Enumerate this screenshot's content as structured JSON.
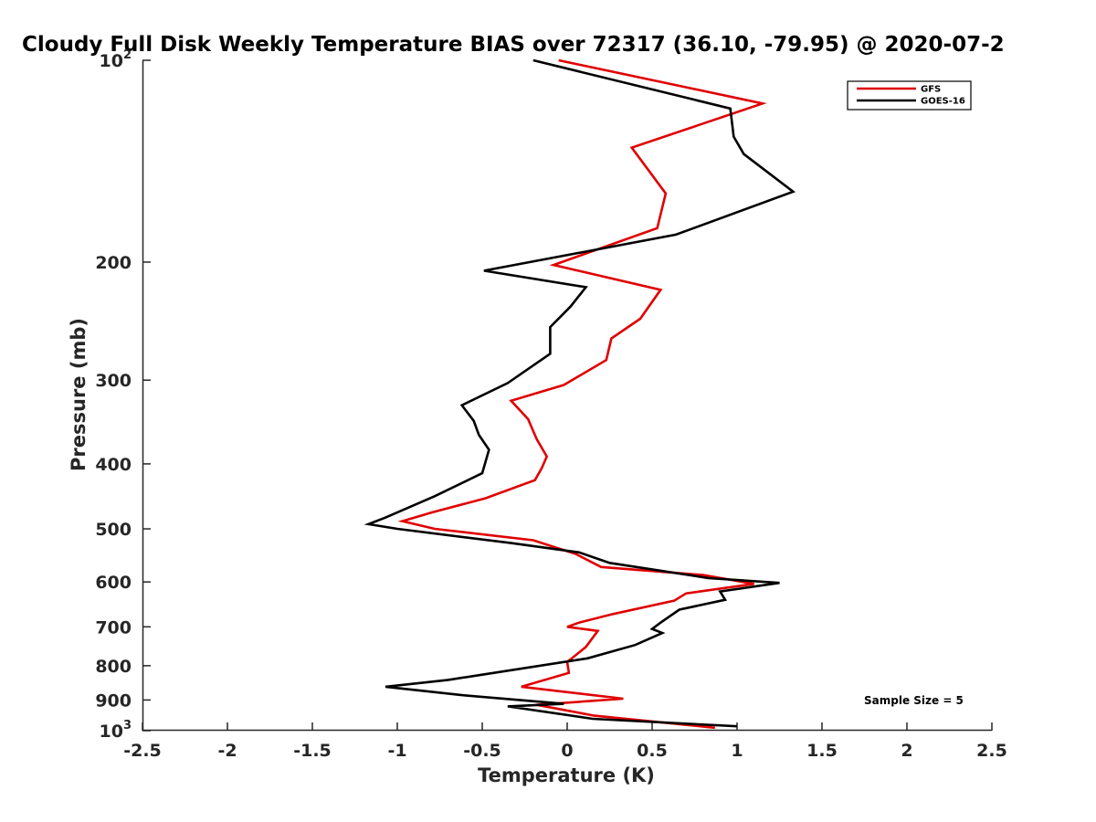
{
  "chart_data": {
    "type": "line",
    "title": "Cloudy Full Disk Weekly Temperature BIAS over 72317 (36.10, -79.95) @ 2020-07-2",
    "xlabel": "Temperature (K)",
    "ylabel": "Pressure (mb)",
    "xlim": [
      -2.5,
      2.5
    ],
    "ylim": [
      100,
      1000
    ],
    "y_scale": "log",
    "y_reversed": true,
    "grid": false,
    "legend_position": "top-right",
    "x_ticks": [
      -2.5,
      -2,
      -1.5,
      -1,
      -0.5,
      0,
      0.5,
      1,
      1.5,
      2,
      2.5
    ],
    "x_tick_labels": [
      "-2.5",
      "-2",
      "-1.5",
      "-1",
      "-0.5",
      "0",
      "0.5",
      "1",
      "1.5",
      "2",
      "2.5"
    ],
    "y_ticks": [
      100,
      200,
      300,
      400,
      500,
      600,
      700,
      800,
      900,
      1000
    ],
    "y_tick_labels": [
      {
        "base": "10",
        "exp": "2"
      },
      {
        "base": "200",
        "exp": ""
      },
      {
        "base": "300",
        "exp": ""
      },
      {
        "base": "400",
        "exp": ""
      },
      {
        "base": "500",
        "exp": ""
      },
      {
        "base": "600",
        "exp": ""
      },
      {
        "base": "700",
        "exp": ""
      },
      {
        "base": "800",
        "exp": ""
      },
      {
        "base": "900",
        "exp": ""
      },
      {
        "base": "10",
        "exp": "3"
      }
    ],
    "annotation": "Sample Size = 5",
    "series": [
      {
        "name": "GFS",
        "color": "#e00000",
        "points": [
          [
            -0.05,
            100
          ],
          [
            1.15,
            116
          ],
          [
            0.38,
            135
          ],
          [
            0.58,
            158
          ],
          [
            0.53,
            178
          ],
          [
            -0.08,
            202
          ],
          [
            0.55,
            220
          ],
          [
            0.43,
            243
          ],
          [
            0.26,
            260
          ],
          [
            0.23,
            280
          ],
          [
            -0.02,
            305
          ],
          [
            -0.33,
            322
          ],
          [
            -0.23,
            343
          ],
          [
            -0.18,
            367
          ],
          [
            -0.12,
            390
          ],
          [
            -0.15,
            406
          ],
          [
            -0.19,
            423
          ],
          [
            -0.48,
            450
          ],
          [
            -0.8,
            473
          ],
          [
            -0.97,
            487
          ],
          [
            -0.78,
            500
          ],
          [
            -0.2,
            520
          ],
          [
            0.05,
            545
          ],
          [
            0.2,
            570
          ],
          [
            0.8,
            586
          ],
          [
            1.1,
            604
          ],
          [
            0.7,
            624
          ],
          [
            0.63,
            640
          ],
          [
            0.27,
            670
          ],
          [
            0.07,
            690
          ],
          [
            0.0,
            700
          ],
          [
            0.18,
            710
          ],
          [
            0.11,
            750
          ],
          [
            0.0,
            790
          ],
          [
            0.01,
            820
          ],
          [
            -0.27,
            860
          ],
          [
            0.33,
            896
          ],
          [
            -0.18,
            915
          ],
          [
            0.16,
            950
          ],
          [
            0.87,
            990
          ]
        ]
      },
      {
        "name": "GOES-16",
        "color": "#000000",
        "points": [
          [
            -0.2,
            100
          ],
          [
            0.96,
            118
          ],
          [
            0.98,
            130
          ],
          [
            1.04,
            138
          ],
          [
            1.33,
            157
          ],
          [
            0.64,
            182
          ],
          [
            -0.49,
            206
          ],
          [
            0.11,
            218
          ],
          [
            0.02,
            233
          ],
          [
            -0.1,
            250
          ],
          [
            -0.1,
            274
          ],
          [
            -0.35,
            303
          ],
          [
            -0.62,
            327
          ],
          [
            -0.55,
            345
          ],
          [
            -0.52,
            362
          ],
          [
            -0.46,
            381
          ],
          [
            -0.5,
            413
          ],
          [
            -0.78,
            447
          ],
          [
            -1.07,
            481
          ],
          [
            -1.17,
            492
          ],
          [
            -1.0,
            500
          ],
          [
            -0.33,
            525
          ],
          [
            0.07,
            542
          ],
          [
            0.25,
            562
          ],
          [
            0.83,
            592
          ],
          [
            1.25,
            602
          ],
          [
            0.9,
            620
          ],
          [
            0.93,
            638
          ],
          [
            0.66,
            660
          ],
          [
            0.55,
            690
          ],
          [
            0.5,
            705
          ],
          [
            0.56,
            715
          ],
          [
            0.4,
            745
          ],
          [
            0.12,
            780
          ],
          [
            -0.5,
            825
          ],
          [
            -0.7,
            840
          ],
          [
            -1.07,
            860
          ],
          [
            -0.62,
            885
          ],
          [
            -0.02,
            912
          ],
          [
            -0.35,
            920
          ],
          [
            0.15,
            960
          ],
          [
            1.0,
            985
          ]
        ]
      }
    ]
  }
}
